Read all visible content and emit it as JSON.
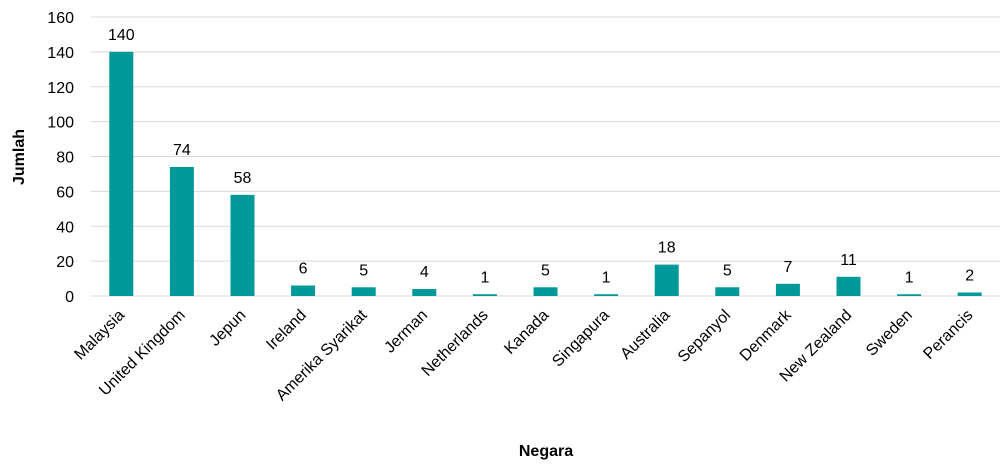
{
  "chart_data": {
    "type": "bar",
    "title": "",
    "xlabel": "Negara",
    "ylabel": "Jumlah",
    "ylim": [
      0,
      160
    ],
    "yticks": [
      0,
      20,
      40,
      60,
      80,
      100,
      120,
      140,
      160
    ],
    "grid": true,
    "legend": "none",
    "categories": [
      "Malaysia",
      "United Kingdom",
      "Jepun",
      "Ireland",
      "Amerika Syarikat",
      "Jerman",
      "Netherlands",
      "Kanada",
      "Singapura",
      "Australia",
      "Sepanyol",
      "Denmark",
      "New Zealand",
      "Sweden",
      "Perancis"
    ],
    "values": [
      140,
      74,
      58,
      6,
      5,
      4,
      1,
      5,
      1,
      18,
      5,
      7,
      11,
      1,
      2
    ],
    "data_labels": true,
    "colors": {
      "bar": "#009999",
      "grid": "#d9d9d9"
    }
  }
}
